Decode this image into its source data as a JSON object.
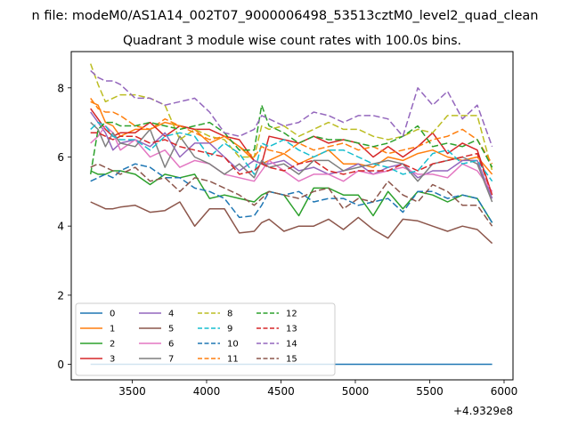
{
  "chart_data": {
    "type": "line",
    "suptitle": "n file: modeM0/AS1A14_002T07_9000006498_53513cztM0_level2_quad_clean",
    "title": "Quadrant 3 module wise count rates with 100.0s bins.",
    "xlabel": "",
    "ylabel": "",
    "x_offset_label": "+4.9329e8",
    "xlim": [
      3090,
      6060
    ],
    "ylim": [
      -0.45,
      9.05
    ],
    "xticks": [
      3500,
      4000,
      4500,
      5000,
      5500,
      6000
    ],
    "yticks": [
      0,
      2,
      4,
      6,
      8
    ],
    "grid": false,
    "legend_position": "lower-left",
    "x": [
      3220,
      3270,
      3320,
      3370,
      3420,
      3520,
      3620,
      3720,
      3820,
      3920,
      4020,
      4120,
      4220,
      4320,
      4370,
      4420,
      4520,
      4620,
      4720,
      4820,
      4920,
      5020,
      5120,
      5220,
      5320,
      5420,
      5520,
      5620,
      5720,
      5820,
      5920
    ],
    "series": [
      {
        "name": "0",
        "color": "#1f77b4",
        "dash": "solid",
        "values": [
          0,
          0,
          0,
          0,
          0,
          0,
          0,
          0,
          0,
          0,
          0,
          0,
          0,
          0,
          0,
          0,
          0,
          0,
          0,
          0,
          0,
          0,
          0,
          0,
          0,
          0,
          0,
          0,
          0,
          0,
          0
        ]
      },
      {
        "name": "1",
        "color": "#ff7f0e",
        "dash": "solid",
        "values": [
          7.6,
          7.5,
          7.0,
          6.9,
          6.6,
          6.8,
          6.8,
          7.0,
          6.9,
          6.8,
          6.4,
          6.6,
          6.3,
          5.9,
          5.8,
          5.9,
          6.1,
          5.8,
          6.0,
          6.2,
          5.8,
          5.8,
          5.7,
          6.0,
          5.9,
          6.1,
          6.2,
          6.0,
          5.9,
          6.0,
          5.5
        ]
      },
      {
        "name": "2",
        "color": "#2ca02c",
        "dash": "solid",
        "values": [
          5.6,
          5.5,
          5.5,
          5.6,
          5.6,
          5.5,
          5.2,
          5.5,
          5.4,
          5.5,
          4.8,
          4.9,
          4.8,
          4.7,
          4.9,
          5.0,
          4.9,
          4.3,
          5.1,
          5.1,
          4.9,
          4.9,
          4.3,
          5.0,
          4.5,
          5.0,
          4.9,
          4.7,
          4.9,
          4.8,
          4.1
        ]
      },
      {
        "name": "3",
        "color": "#d62728",
        "dash": "solid",
        "values": [
          7.4,
          7.1,
          6.8,
          6.6,
          6.7,
          6.7,
          7.0,
          6.6,
          6.9,
          6.8,
          6.8,
          6.6,
          6.5,
          5.9,
          5.8,
          6.6,
          6.5,
          6.4,
          6.6,
          6.4,
          6.5,
          6.4,
          6.0,
          6.3,
          6.0,
          6.3,
          6.7,
          6.1,
          6.4,
          6.2,
          4.9
        ]
      },
      {
        "name": "4",
        "color": "#9467bd",
        "dash": "solid",
        "values": [
          7.3,
          7.0,
          6.7,
          6.2,
          6.4,
          6.5,
          6.3,
          6.7,
          6.0,
          6.4,
          6.4,
          6.0,
          5.6,
          5.9,
          5.8,
          5.8,
          5.9,
          5.6,
          5.7,
          5.5,
          5.6,
          5.8,
          5.5,
          5.7,
          5.8,
          5.4,
          5.6,
          5.6,
          5.9,
          5.9,
          4.8
        ]
      },
      {
        "name": "5",
        "color": "#8c564b",
        "dash": "solid",
        "values": [
          4.7,
          4.6,
          4.5,
          4.5,
          4.55,
          4.6,
          4.4,
          4.45,
          4.7,
          4.0,
          4.5,
          4.5,
          3.8,
          3.85,
          4.1,
          4.2,
          3.85,
          4.0,
          4.0,
          4.2,
          3.9,
          4.25,
          3.9,
          3.65,
          4.2,
          4.15,
          4.0,
          3.85,
          4.0,
          3.9,
          3.5
        ]
      },
      {
        "name": "6",
        "color": "#e377c2",
        "dash": "solid",
        "values": [
          6.4,
          6.6,
          6.9,
          6.7,
          6.2,
          6.5,
          6.0,
          6.2,
          5.7,
          5.9,
          5.8,
          5.5,
          5.4,
          5.3,
          5.6,
          5.9,
          5.6,
          5.3,
          5.5,
          5.5,
          5.3,
          5.6,
          5.5,
          5.6,
          5.7,
          5.5,
          5.5,
          5.4,
          5.8,
          5.6,
          5.0
        ]
      },
      {
        "name": "7",
        "color": "#7f7f7f",
        "dash": "solid",
        "values": [
          7.0,
          6.8,
          6.3,
          6.7,
          6.4,
          6.3,
          6.8,
          5.7,
          6.6,
          6.0,
          5.8,
          5.5,
          5.8,
          5.4,
          5.9,
          5.7,
          5.8,
          5.5,
          5.9,
          5.9,
          5.6,
          5.7,
          5.8,
          5.9,
          5.8,
          5.3,
          5.8,
          5.9,
          6.0,
          5.8,
          4.7
        ]
      },
      {
        "name": "8",
        "color": "#bcbd22",
        "dash": "dashed",
        "values": [
          8.7,
          8.1,
          7.6,
          7.7,
          7.8,
          7.8,
          7.7,
          7.5,
          6.5,
          6.8,
          6.6,
          6.5,
          6.0,
          6.0,
          6.9,
          6.8,
          6.9,
          6.6,
          6.8,
          7.0,
          6.8,
          6.8,
          6.6,
          6.5,
          6.6,
          6.8,
          6.7,
          7.2,
          7.2,
          7.2,
          5.6
        ]
      },
      {
        "name": "9",
        "color": "#17becf",
        "dash": "dashed",
        "values": [
          6.8,
          7.0,
          6.9,
          6.6,
          6.5,
          6.5,
          6.2,
          6.6,
          6.7,
          6.6,
          6.0,
          6.4,
          6.1,
          5.5,
          6.4,
          6.3,
          6.5,
          6.2,
          6.0,
          6.2,
          6.2,
          6.0,
          5.8,
          5.7,
          5.5,
          5.6,
          6.1,
          6.2,
          5.8,
          5.9,
          5.3
        ]
      },
      {
        "name": "10",
        "color": "#1f77b4",
        "dash": "dashed",
        "values": [
          5.3,
          5.4,
          5.5,
          5.4,
          5.6,
          5.8,
          5.7,
          5.4,
          5.4,
          5.1,
          5.0,
          4.8,
          4.25,
          4.3,
          4.6,
          5.0,
          4.9,
          5.0,
          4.7,
          4.8,
          4.8,
          4.6,
          4.7,
          4.8,
          4.4,
          5.0,
          5.0,
          4.8,
          4.9,
          4.8,
          4.1
        ]
      },
      {
        "name": "11",
        "color": "#ff7f0e",
        "dash": "dashed",
        "values": [
          7.7,
          7.4,
          7.3,
          7.3,
          7.2,
          6.9,
          6.8,
          7.1,
          6.9,
          6.7,
          6.5,
          6.6,
          6.3,
          6.0,
          6.3,
          6.2,
          6.1,
          6.4,
          6.2,
          6.3,
          6.4,
          6.2,
          6.3,
          6.1,
          6.2,
          6.3,
          6.5,
          6.6,
          6.8,
          6.5,
          5.8
        ]
      },
      {
        "name": "12",
        "color": "#2ca02c",
        "dash": "dashed",
        "values": [
          5.5,
          6.8,
          7.0,
          7.0,
          6.9,
          6.9,
          7.0,
          6.9,
          6.8,
          6.9,
          7.0,
          6.7,
          6.2,
          6.2,
          7.5,
          6.9,
          6.7,
          6.4,
          6.6,
          6.5,
          6.5,
          6.4,
          6.3,
          6.4,
          6.6,
          6.9,
          6.3,
          6.4,
          6.3,
          6.5,
          5.7
        ]
      },
      {
        "name": "13",
        "color": "#d62728",
        "dash": "dashed",
        "values": [
          6.7,
          6.7,
          6.6,
          6.5,
          6.6,
          6.6,
          6.4,
          6.5,
          6.3,
          6.2,
          6.1,
          6.0,
          5.5,
          5.6,
          5.8,
          5.7,
          5.6,
          5.8,
          5.9,
          5.6,
          5.5,
          5.6,
          5.6,
          5.6,
          5.8,
          5.6,
          5.8,
          5.9,
          6.0,
          6.1,
          4.9
        ]
      },
      {
        "name": "14",
        "color": "#9467bd",
        "dash": "dashed",
        "values": [
          8.5,
          8.3,
          8.2,
          8.2,
          8.1,
          7.7,
          7.7,
          7.5,
          7.6,
          7.7,
          7.3,
          6.7,
          6.6,
          6.8,
          7.2,
          7.1,
          6.9,
          7.0,
          7.3,
          7.2,
          7.0,
          7.2,
          7.2,
          7.1,
          6.6,
          8.0,
          7.5,
          7.9,
          7.1,
          7.5,
          6.3
        ]
      },
      {
        "name": "15",
        "color": "#8c564b",
        "dash": "dashed",
        "values": [
          5.7,
          5.8,
          5.7,
          5.6,
          5.5,
          5.7,
          5.3,
          5.4,
          5.0,
          5.4,
          5.3,
          5.1,
          4.9,
          4.6,
          4.8,
          5.0,
          4.9,
          4.8,
          5.0,
          5.1,
          4.5,
          4.8,
          4.7,
          5.3,
          4.9,
          4.7,
          5.2,
          5.0,
          4.6,
          4.6,
          4.0
        ]
      }
    ]
  }
}
